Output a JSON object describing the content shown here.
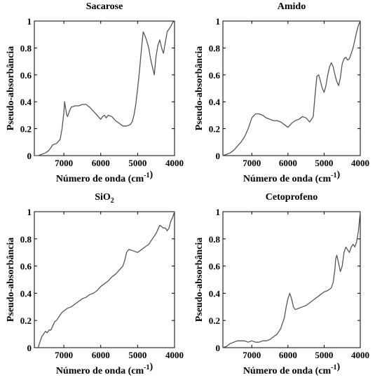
{
  "chart_data": [
    {
      "type": "line",
      "title": "Sacarose",
      "xlabel": "Número de onda (cm⁻¹)",
      "ylabel": "Pseudo-absorbância",
      "xlim": [
        7800,
        4000
      ],
      "ylim": [
        0,
        1
      ],
      "x_reversed": true,
      "grid": false,
      "xticks": [
        7000,
        6000,
        5000,
        4000
      ],
      "xtick_labels": [
        "7000",
        "6000",
        "5000",
        "4000"
      ],
      "yticks": [
        0,
        0.2,
        0.4,
        0.6,
        0.8,
        1
      ],
      "ytick_labels": [
        "0",
        "0.2",
        "0.4",
        "0.6",
        "0.8",
        "1"
      ],
      "series": [
        {
          "x": [
            7800,
            7700,
            7500,
            7400,
            7300,
            7200,
            7100,
            7050,
            7000,
            6980,
            6950,
            6920,
            6900,
            6850,
            6800,
            6700,
            6600,
            6500,
            6400,
            6300,
            6200,
            6100,
            6000,
            5950,
            5900,
            5850,
            5800,
            5700,
            5600,
            5500,
            5400,
            5300,
            5200,
            5150,
            5100,
            5050,
            5000,
            4950,
            4900,
            4850,
            4800,
            4750,
            4700,
            4650,
            4600,
            4550,
            4500,
            4450,
            4400,
            4350,
            4300,
            4250,
            4200,
            4150,
            4100,
            4050,
            4000
          ],
          "y": [
            0.0,
            0.0,
            0.02,
            0.04,
            0.08,
            0.09,
            0.12,
            0.2,
            0.32,
            0.4,
            0.35,
            0.3,
            0.29,
            0.33,
            0.36,
            0.37,
            0.37,
            0.38,
            0.38,
            0.36,
            0.33,
            0.3,
            0.27,
            0.29,
            0.3,
            0.28,
            0.3,
            0.29,
            0.26,
            0.24,
            0.22,
            0.22,
            0.23,
            0.25,
            0.3,
            0.38,
            0.5,
            0.63,
            0.78,
            0.92,
            0.89,
            0.85,
            0.8,
            0.72,
            0.66,
            0.6,
            0.74,
            0.82,
            0.86,
            0.8,
            0.76,
            0.84,
            0.92,
            0.94,
            0.96,
            0.99,
            1.0
          ]
        }
      ]
    },
    {
      "type": "line",
      "title": "Amido",
      "xlabel": "Número de onda (cm⁻¹)",
      "ylabel": "Pseudo-absorbância",
      "xlim": [
        7800,
        4000
      ],
      "ylim": [
        0,
        1
      ],
      "x_reversed": true,
      "grid": false,
      "xticks": [
        7000,
        6000,
        5000,
        4000
      ],
      "xtick_labels": [
        "7000",
        "6000",
        "5000",
        "4000"
      ],
      "yticks": [
        0,
        0.2,
        0.4,
        0.6,
        0.8,
        1
      ],
      "ytick_labels": [
        "0",
        "0.2",
        "0.4",
        "0.6",
        "0.8",
        "1"
      ],
      "series": [
        {
          "x": [
            7800,
            7700,
            7600,
            7500,
            7400,
            7300,
            7200,
            7100,
            7000,
            6900,
            6800,
            6700,
            6600,
            6500,
            6400,
            6300,
            6200,
            6100,
            6000,
            5900,
            5800,
            5700,
            5600,
            5500,
            5400,
            5300,
            5250,
            5200,
            5150,
            5100,
            5050,
            5000,
            4950,
            4900,
            4850,
            4800,
            4750,
            4700,
            4650,
            4600,
            4550,
            4500,
            4450,
            4400,
            4350,
            4300,
            4250,
            4200,
            4150,
            4100,
            4050,
            4000
          ],
          "y": [
            0.0,
            0.01,
            0.02,
            0.04,
            0.07,
            0.1,
            0.14,
            0.2,
            0.28,
            0.31,
            0.31,
            0.3,
            0.28,
            0.27,
            0.26,
            0.26,
            0.25,
            0.23,
            0.21,
            0.24,
            0.26,
            0.27,
            0.29,
            0.28,
            0.25,
            0.29,
            0.45,
            0.59,
            0.6,
            0.55,
            0.5,
            0.47,
            0.52,
            0.6,
            0.66,
            0.69,
            0.66,
            0.6,
            0.55,
            0.52,
            0.58,
            0.68,
            0.72,
            0.73,
            0.71,
            0.72,
            0.76,
            0.8,
            0.86,
            0.92,
            0.97,
            1.0
          ]
        }
      ]
    },
    {
      "type": "line",
      "title": "SiO₂",
      "xlabel": "Número de onda (cm⁻¹)",
      "ylabel": "Pseudo-absorbância",
      "xlim": [
        7800,
        4000
      ],
      "ylim": [
        0,
        1
      ],
      "x_reversed": true,
      "grid": false,
      "xticks": [
        7000,
        6000,
        5000,
        4000
      ],
      "xtick_labels": [
        "7000",
        "6000",
        "5000",
        "4000"
      ],
      "yticks": [
        0,
        0.2,
        0.4,
        0.6,
        0.8,
        1
      ],
      "ytick_labels": [
        "0",
        "0.2",
        "0.4",
        "0.6",
        "0.8",
        "1"
      ],
      "series": [
        {
          "x": [
            7700,
            7650,
            7600,
            7550,
            7500,
            7450,
            7400,
            7350,
            7300,
            7250,
            7200,
            7150,
            7100,
            7050,
            7000,
            6900,
            6800,
            6700,
            6600,
            6500,
            6400,
            6300,
            6200,
            6100,
            6000,
            5900,
            5800,
            5700,
            5600,
            5500,
            5400,
            5350,
            5300,
            5250,
            5200,
            5100,
            5000,
            4900,
            4800,
            4700,
            4600,
            4500,
            4450,
            4400,
            4300,
            4250,
            4200,
            4150,
            4100,
            4050,
            4000
          ],
          "y": [
            0.0,
            0.04,
            0.08,
            0.1,
            0.12,
            0.11,
            0.13,
            0.13,
            0.16,
            0.19,
            0.2,
            0.22,
            0.24,
            0.26,
            0.27,
            0.29,
            0.3,
            0.32,
            0.34,
            0.36,
            0.37,
            0.39,
            0.4,
            0.42,
            0.45,
            0.47,
            0.49,
            0.52,
            0.54,
            0.57,
            0.6,
            0.64,
            0.7,
            0.72,
            0.72,
            0.71,
            0.7,
            0.72,
            0.74,
            0.76,
            0.8,
            0.84,
            0.87,
            0.9,
            0.88,
            0.88,
            0.86,
            0.88,
            0.93,
            0.96,
            1.0
          ]
        }
      ]
    },
    {
      "type": "line",
      "title": "Cetoprofeno",
      "xlabel": "Número de onda (cm⁻¹)",
      "ylabel": "Pseudo-absorbância",
      "xlim": [
        7800,
        4000
      ],
      "ylim": [
        0,
        1
      ],
      "x_reversed": true,
      "grid": false,
      "xticks": [
        7000,
        6000,
        5000,
        4000
      ],
      "xtick_labels": [
        "7000",
        "6000",
        "5000",
        "4000"
      ],
      "yticks": [
        0,
        0.2,
        0.4,
        0.6,
        0.8,
        1
      ],
      "ytick_labels": [
        "0",
        "0.2",
        "0.4",
        "0.6",
        "0.8",
        "1"
      ],
      "series": [
        {
          "x": [
            7800,
            7700,
            7600,
            7500,
            7400,
            7300,
            7200,
            7100,
            7000,
            6900,
            6800,
            6700,
            6600,
            6500,
            6400,
            6300,
            6200,
            6100,
            6050,
            6000,
            5950,
            5900,
            5850,
            5800,
            5700,
            5600,
            5500,
            5400,
            5300,
            5200,
            5100,
            5000,
            4900,
            4800,
            4750,
            4700,
            4680,
            4650,
            4600,
            4550,
            4500,
            4450,
            4400,
            4350,
            4300,
            4250,
            4200,
            4150,
            4100,
            4050,
            4000
          ],
          "y": [
            0.0,
            0.01,
            0.03,
            0.04,
            0.05,
            0.05,
            0.05,
            0.04,
            0.05,
            0.04,
            0.04,
            0.05,
            0.05,
            0.06,
            0.08,
            0.1,
            0.14,
            0.22,
            0.3,
            0.36,
            0.4,
            0.36,
            0.3,
            0.28,
            0.29,
            0.3,
            0.31,
            0.33,
            0.35,
            0.37,
            0.39,
            0.41,
            0.42,
            0.44,
            0.48,
            0.58,
            0.65,
            0.68,
            0.62,
            0.56,
            0.6,
            0.7,
            0.74,
            0.72,
            0.7,
            0.74,
            0.76,
            0.74,
            0.78,
            0.86,
            1.0
          ]
        }
      ]
    }
  ]
}
